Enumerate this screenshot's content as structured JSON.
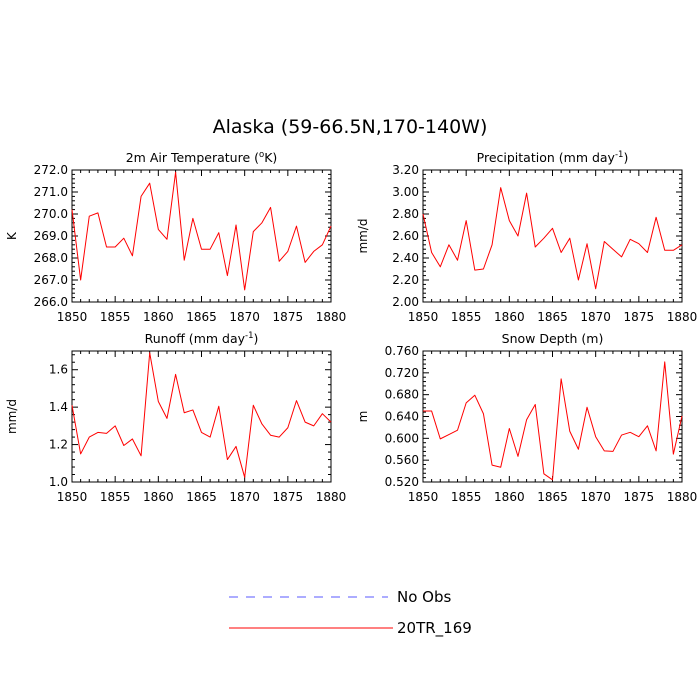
{
  "figure": {
    "title": "Alaska (59-66.5N,170-140W)"
  },
  "legend": {
    "items": [
      {
        "label": "No Obs",
        "style": "dashed",
        "color": "#5a5aff"
      },
      {
        "label": "20TR_169",
        "style": "solid",
        "color": "#ff0000"
      }
    ]
  },
  "chart_data": [
    {
      "type": "line",
      "title_text": "2m Air Temperature (",
      "title_sup": "o",
      "title_tail": "K)",
      "ylabel": "K",
      "xlim": [
        1850,
        1880
      ],
      "ylim": [
        266.0,
        272.0
      ],
      "xticks": [
        1850,
        1855,
        1860,
        1865,
        1870,
        1875,
        1880
      ],
      "yticks": [
        "266.0",
        "267.0",
        "268.0",
        "269.0",
        "270.0",
        "271.0",
        "272.0"
      ],
      "x": [
        1850,
        1851,
        1852,
        1853,
        1854,
        1855,
        1856,
        1857,
        1858,
        1859,
        1860,
        1861,
        1862,
        1863,
        1864,
        1865,
        1866,
        1867,
        1868,
        1869,
        1870,
        1871,
        1872,
        1873,
        1874,
        1875,
        1876,
        1877,
        1878,
        1879,
        1880
      ],
      "series": [
        {
          "name": "20TR_169",
          "color": "#ff0000",
          "values": [
            270.2,
            267.0,
            269.9,
            270.05,
            268.5,
            268.5,
            268.9,
            268.1,
            270.8,
            271.4,
            269.3,
            268.85,
            271.9,
            267.9,
            269.8,
            268.4,
            268.4,
            269.15,
            267.2,
            269.5,
            266.55,
            269.2,
            269.6,
            270.3,
            267.85,
            268.3,
            269.45,
            267.8,
            268.3,
            268.6,
            269.45
          ]
        }
      ]
    },
    {
      "type": "line",
      "title_text": "Precipitation (mm day",
      "title_sup": "-1",
      "title_tail": ")",
      "ylabel": "mm/d",
      "xlim": [
        1850,
        1880
      ],
      "ylim": [
        2.0,
        3.2
      ],
      "xticks": [
        1850,
        1855,
        1860,
        1865,
        1870,
        1875,
        1880
      ],
      "yticks": [
        "2.00",
        "2.20",
        "2.40",
        "2.60",
        "2.80",
        "3.00",
        "3.20"
      ],
      "x": [
        1850,
        1851,
        1852,
        1853,
        1854,
        1855,
        1856,
        1857,
        1858,
        1859,
        1860,
        1861,
        1862,
        1863,
        1864,
        1865,
        1866,
        1867,
        1868,
        1869,
        1870,
        1871,
        1872,
        1873,
        1874,
        1875,
        1876,
        1877,
        1878,
        1879,
        1880
      ],
      "series": [
        {
          "name": "20TR_169",
          "color": "#ff0000",
          "values": [
            2.8,
            2.45,
            2.32,
            2.52,
            2.38,
            2.74,
            2.29,
            2.3,
            2.52,
            3.04,
            2.74,
            2.6,
            2.99,
            2.5,
            2.58,
            2.67,
            2.45,
            2.58,
            2.2,
            2.53,
            2.12,
            2.55,
            2.48,
            2.41,
            2.57,
            2.53,
            2.45,
            2.77,
            2.47,
            2.47,
            2.52
          ]
        }
      ]
    },
    {
      "type": "line",
      "title_text": "Runoff (mm day",
      "title_sup": "-1",
      "title_tail": ")",
      "ylabel": "mm/d",
      "xlim": [
        1850,
        1880
      ],
      "ylim": [
        1.0,
        1.7
      ],
      "xticks": [
        1850,
        1855,
        1860,
        1865,
        1870,
        1875,
        1880
      ],
      "yticks": [
        "1.0",
        "1.2",
        "1.4",
        "1.6"
      ],
      "ytick_values": [
        1.0,
        1.2,
        1.4,
        1.6
      ],
      "x": [
        1850,
        1851,
        1852,
        1853,
        1854,
        1855,
        1856,
        1857,
        1858,
        1859,
        1860,
        1861,
        1862,
        1863,
        1864,
        1865,
        1866,
        1867,
        1868,
        1869,
        1870,
        1871,
        1872,
        1873,
        1874,
        1875,
        1876,
        1877,
        1878,
        1879,
        1880
      ],
      "series": [
        {
          "name": "20TR_169",
          "color": "#ff0000",
          "values": [
            1.41,
            1.15,
            1.24,
            1.265,
            1.26,
            1.3,
            1.195,
            1.23,
            1.14,
            1.69,
            1.43,
            1.34,
            1.575,
            1.37,
            1.385,
            1.265,
            1.24,
            1.405,
            1.12,
            1.19,
            1.025,
            1.41,
            1.31,
            1.25,
            1.24,
            1.29,
            1.435,
            1.32,
            1.3,
            1.365,
            1.32
          ]
        }
      ]
    },
    {
      "type": "line",
      "title_text": "Snow Depth (m)",
      "title_sup": "",
      "title_tail": "",
      "ylabel": "m",
      "xlim": [
        1850,
        1880
      ],
      "ylim": [
        0.52,
        0.76
      ],
      "xticks": [
        1850,
        1855,
        1860,
        1865,
        1870,
        1875,
        1880
      ],
      "yticks": [
        "0.520",
        "0.560",
        "0.600",
        "0.640",
        "0.680",
        "0.720",
        "0.760"
      ],
      "x": [
        1850,
        1851,
        1852,
        1853,
        1854,
        1855,
        1856,
        1857,
        1858,
        1859,
        1860,
        1861,
        1862,
        1863,
        1864,
        1865,
        1866,
        1867,
        1868,
        1869,
        1870,
        1871,
        1872,
        1873,
        1874,
        1875,
        1876,
        1877,
        1878,
        1879,
        1880
      ],
      "series": [
        {
          "name": "20TR_169",
          "color": "#ff0000",
          "values": [
            0.65,
            0.65,
            0.599,
            0.607,
            0.615,
            0.665,
            0.679,
            0.645,
            0.551,
            0.547,
            0.618,
            0.567,
            0.634,
            0.662,
            0.535,
            0.524,
            0.709,
            0.613,
            0.58,
            0.657,
            0.603,
            0.577,
            0.576,
            0.606,
            0.611,
            0.603,
            0.623,
            0.577,
            0.74,
            0.571,
            0.641
          ]
        }
      ]
    }
  ]
}
